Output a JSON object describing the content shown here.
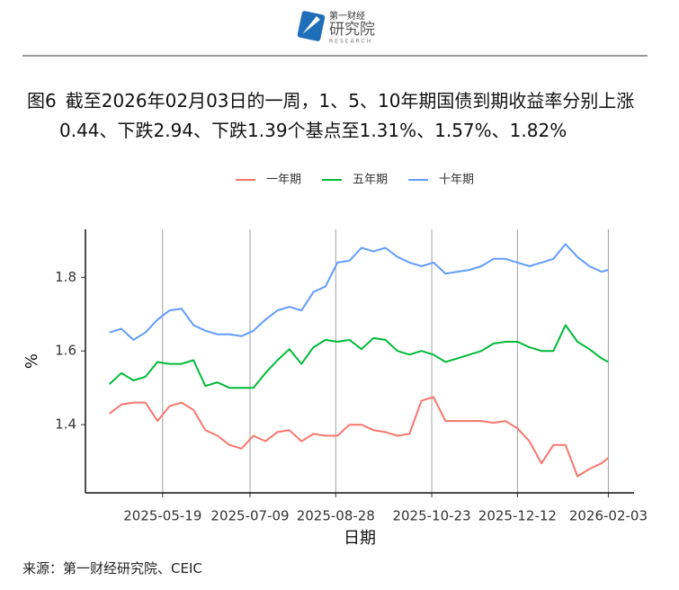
{
  "logo": {
    "name": "第一财经",
    "title": "研究院",
    "subtitle": "RESEARCH"
  },
  "chart_data": {
    "type": "line",
    "figure_label": "图6",
    "title": "截至2026年02月03日的一周，1、5、10年期国债到期收益率分别上涨0.44、下跌2.94、下跌1.39个基点至1.31%、1.57%、1.82%",
    "x_label": "日期",
    "y_label": "%",
    "source": "来源：第一财经研究院、CEIC",
    "legend": "top",
    "grid": "x",
    "x": [
      "2025-04-18",
      "2025-04-25",
      "2025-05-02",
      "2025-05-09",
      "2025-05-16",
      "2025-05-23",
      "2025-05-30",
      "2025-06-06",
      "2025-06-13",
      "2025-06-20",
      "2025-06-27",
      "2025-07-04",
      "2025-07-11",
      "2025-07-18",
      "2025-07-25",
      "2025-08-01",
      "2025-08-08",
      "2025-08-15",
      "2025-08-22",
      "2025-08-29",
      "2025-09-05",
      "2025-09-12",
      "2025-09-19",
      "2025-09-26",
      "2025-10-03",
      "2025-10-10",
      "2025-10-17",
      "2025-10-24",
      "2025-10-31",
      "2025-11-07",
      "2025-11-14",
      "2025-11-21",
      "2025-11-28",
      "2025-12-05",
      "2025-12-12",
      "2025-12-19",
      "2025-12-26",
      "2026-01-02",
      "2026-01-09",
      "2026-01-16",
      "2026-01-23",
      "2026-01-30",
      "2026-02-03"
    ],
    "series": [
      {
        "name": "一年期",
        "color": "#F8766D",
        "values": [
          1.43,
          1.455,
          1.46,
          1.46,
          1.41,
          1.45,
          1.46,
          1.44,
          1.385,
          1.37,
          1.345,
          1.335,
          1.37,
          1.355,
          1.38,
          1.385,
          1.355,
          1.375,
          1.37,
          1.37,
          1.4,
          1.4,
          1.385,
          1.38,
          1.37,
          1.375,
          1.465,
          1.475,
          1.41,
          1.41,
          1.41,
          1.41,
          1.405,
          1.41,
          1.39,
          1.355,
          1.295,
          1.345,
          1.345,
          1.26,
          1.28,
          1.295,
          1.31
        ]
      },
      {
        "name": "五年期",
        "color": "#00BA38",
        "values": [
          1.51,
          1.54,
          1.52,
          1.53,
          1.57,
          1.565,
          1.565,
          1.575,
          1.505,
          1.515,
          1.5,
          1.5,
          1.5,
          1.54,
          1.575,
          1.605,
          1.565,
          1.61,
          1.63,
          1.625,
          1.63,
          1.605,
          1.635,
          1.63,
          1.6,
          1.59,
          1.6,
          1.59,
          1.57,
          1.58,
          1.59,
          1.6,
          1.62,
          1.625,
          1.625,
          1.61,
          1.6,
          1.6,
          1.67,
          1.625,
          1.605,
          1.58,
          1.57
        ]
      },
      {
        "name": "十年期",
        "color": "#619CFF",
        "values": [
          1.65,
          1.66,
          1.63,
          1.65,
          1.685,
          1.71,
          1.715,
          1.67,
          1.655,
          1.645,
          1.645,
          1.64,
          1.655,
          1.685,
          1.71,
          1.72,
          1.71,
          1.76,
          1.775,
          1.84,
          1.845,
          1.88,
          1.87,
          1.88,
          1.855,
          1.84,
          1.83,
          1.84,
          1.81,
          1.815,
          1.82,
          1.83,
          1.85,
          1.85,
          1.84,
          1.83,
          1.84,
          1.85,
          1.89,
          1.855,
          1.83,
          1.815,
          1.82
        ]
      }
    ],
    "xlim": [
      "2025-04-04",
      "2026-02-18"
    ],
    "xticks": [
      "2025-05-19",
      "2025-07-09",
      "2025-08-28",
      "2025-10-23",
      "2025-12-12",
      "2026-02-03"
    ],
    "ylim": [
      1.215,
      1.93
    ],
    "yticks": [
      1.4,
      1.6,
      1.8
    ]
  }
}
